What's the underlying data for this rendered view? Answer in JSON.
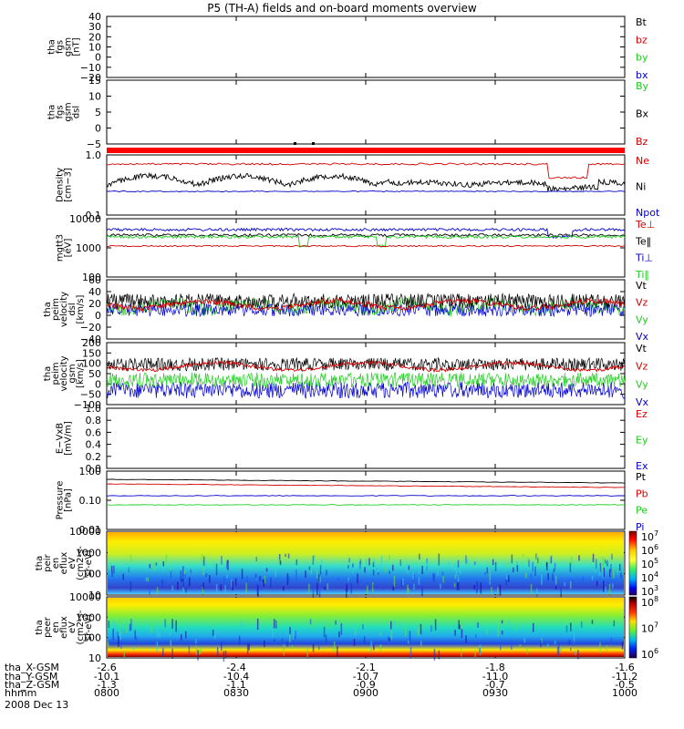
{
  "title": "P5 (TH-A) fields and on-board moments overview",
  "colors": {
    "black": "#000000",
    "red": "#d40000",
    "green": "#22cc22",
    "blue": "#0000cc",
    "frame": "#000000"
  },
  "colorbars": [
    {
      "labels": [
        "10^7",
        "10^6",
        "10^5",
        "10^4",
        "10^3"
      ]
    },
    {
      "labels": [
        "10^8",
        "10^7",
        "10^6"
      ]
    }
  ],
  "footer": {
    "rows": [
      {
        "label": "tha_X-GSM",
        "values": [
          "-2.6",
          "-2.4",
          "-2.1",
          "-1.8",
          "-1.6"
        ]
      },
      {
        "label": "tha_Y-GSM",
        "values": [
          "-10.1",
          "-10.4",
          "-10.7",
          "-11.0",
          "-11.2"
        ]
      },
      {
        "label": "tha_Z-GSM",
        "values": [
          "-1.3",
          "-1.1",
          "-0.9",
          "-0.7",
          "-0.5"
        ]
      },
      {
        "label": "hhmm",
        "values": [
          "0800",
          "0830",
          "0900",
          "0930",
          "1000"
        ]
      }
    ],
    "date": "2008 Dec 13"
  },
  "chart_data": [
    {
      "type": "line",
      "panel": "fgs-gsm",
      "ylabel": [
        "tha",
        "fgs",
        "gsm",
        "[nT]"
      ],
      "yticks": [
        "40",
        "30",
        "20",
        "10",
        "0",
        "−10",
        "−20"
      ],
      "series": [
        {
          "name": "Bt",
          "color": "black",
          "values": [
            32,
            30,
            27,
            25
          ]
        },
        {
          "name": "bz",
          "color": "red",
          "values": [
            25,
            24,
            23,
            22
          ]
        },
        {
          "name": "by",
          "color": "green",
          "values": [
            -2,
            -6,
            -5,
            -3
          ]
        },
        {
          "name": "bx",
          "color": "blue",
          "values": [
            -17,
            -15,
            -13,
            -12
          ]
        }
      ]
    },
    {
      "type": "line",
      "panel": "fgs-dsl",
      "ylabel": [
        "tha",
        "fgs",
        "gsm",
        "dsl"
      ],
      "yticks": [
        "15",
        "10",
        "5",
        "0",
        "−5"
      ],
      "series": [
        {
          "name": "By",
          "color": "green",
          "values": [
            13,
            9,
            9,
            10
          ]
        },
        {
          "name": "Bx",
          "color": "black",
          "values": [
            6,
            3,
            3,
            4
          ]
        },
        {
          "name": "Bz",
          "color": "red",
          "values": [
            1,
            1,
            -1,
            -2
          ]
        }
      ]
    },
    {
      "type": "line",
      "panel": "density",
      "ylabel": [
        "Density",
        "[cm−3]"
      ],
      "yticks": [
        "1.0",
        "0.1"
      ],
      "series": [
        {
          "name": "Ne",
          "color": "red"
        },
        {
          "name": "Ni",
          "color": "black"
        },
        {
          "name": "Npot",
          "color": "blue"
        }
      ]
    },
    {
      "type": "line",
      "panel": "temperature",
      "ylabel": [
        "mgtt3",
        "[eV]"
      ],
      "yticks": [
        "10000",
        "1000",
        "100"
      ],
      "series": [
        {
          "name": "Te⊥",
          "color": "red"
        },
        {
          "name": "Te‖",
          "color": "black"
        },
        {
          "name": "Ti⊥",
          "color": "blue"
        },
        {
          "name": "Ti‖",
          "color": "green"
        }
      ]
    },
    {
      "type": "line",
      "panel": "velocity-dsl",
      "ylabel": [
        "tha",
        "peim",
        "velocity",
        "dsl",
        "[km/s]"
      ],
      "yticks": [
        "60",
        "40",
        "20",
        "0",
        "−20",
        "−40"
      ],
      "series": [
        {
          "name": "Vt",
          "color": "black"
        },
        {
          "name": "Vz",
          "color": "red"
        },
        {
          "name": "Vy",
          "color": "green"
        },
        {
          "name": "Vx",
          "color": "blue"
        }
      ]
    },
    {
      "type": "line",
      "panel": "velocity-gsm",
      "ylabel": [
        "tha",
        "peim",
        "velocity",
        "gsm",
        "[km/s]"
      ],
      "yticks": [
        "200",
        "150",
        "100",
        "50",
        "0",
        "−50",
        "−100"
      ],
      "series": [
        {
          "name": "Vt",
          "color": "black"
        },
        {
          "name": "Vz",
          "color": "red"
        },
        {
          "name": "Vy",
          "color": "green"
        },
        {
          "name": "Vx",
          "color": "blue"
        }
      ]
    },
    {
      "type": "line",
      "panel": "efield",
      "ylabel": [
        "E−VxB",
        "[mV/m]"
      ],
      "yticks": [
        "1.0",
        "0.8",
        "0.6",
        "0.4",
        "0.2",
        "0.0"
      ],
      "series": [
        {
          "name": "Ez",
          "color": "red"
        },
        {
          "name": "Ey",
          "color": "green"
        },
        {
          "name": "Ex",
          "color": "blue"
        }
      ]
    },
    {
      "type": "line",
      "panel": "pressure",
      "ylabel": [
        "Pressure",
        "[nPa]"
      ],
      "yticks": [
        "1.00",
        "0.10",
        "0.01"
      ],
      "series": [
        {
          "name": "Pt",
          "color": "black"
        },
        {
          "name": "Pb",
          "color": "red"
        },
        {
          "name": "Pe",
          "color": "green"
        },
        {
          "name": "Pi",
          "color": "blue"
        }
      ]
    },
    {
      "type": "heatmap",
      "panel": "peir",
      "ylabel": [
        "tha",
        "peir",
        "en",
        "eflux",
        "eV",
        "(cm2-s-",
        "sr-eV)"
      ],
      "yticks": [
        "10000",
        "1000",
        "100",
        "10"
      ]
    },
    {
      "type": "heatmap",
      "panel": "peer",
      "ylabel": [
        "tha",
        "peer",
        "en",
        "eflux",
        "eV",
        "(cm2-s-",
        "sr-eV)"
      ],
      "yticks": [
        "10000",
        "1000",
        "100",
        "10"
      ]
    }
  ]
}
